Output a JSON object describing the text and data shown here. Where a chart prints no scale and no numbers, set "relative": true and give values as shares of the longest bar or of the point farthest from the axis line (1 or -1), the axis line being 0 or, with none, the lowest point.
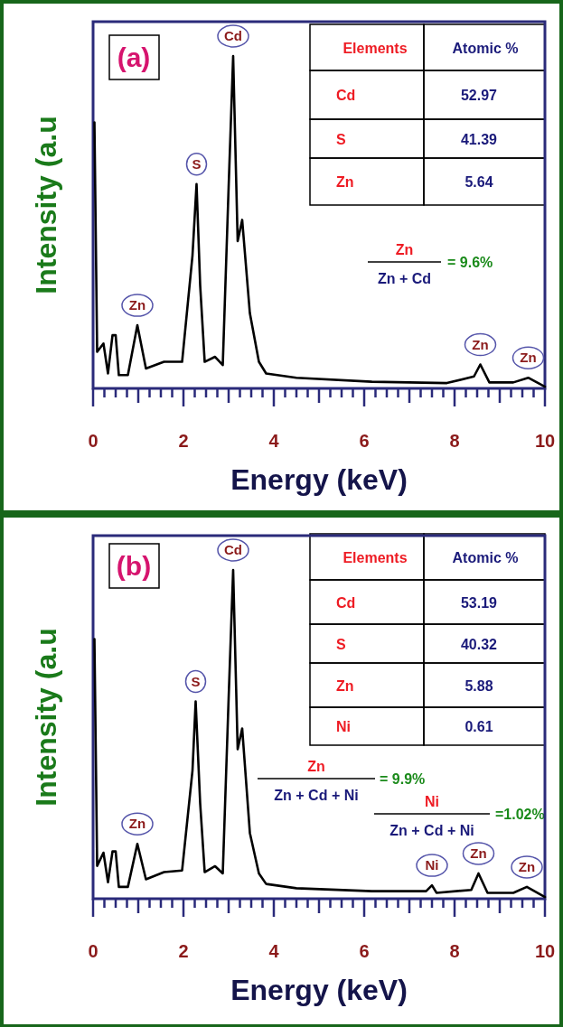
{
  "chart_data": [
    {
      "type": "line",
      "title": "(a)",
      "xlabel": "Energy (keV)",
      "ylabel": "Intensity (a.u",
      "relative": true,
      "tick_labels": "x",
      "color": "#000000",
      "x": [
        0.03,
        0.09,
        0.23,
        0.33,
        0.43,
        0.5,
        0.57,
        0.77,
        0.98,
        1.17,
        1.57,
        1.97,
        2.2,
        2.29,
        2.37,
        2.47,
        2.7,
        2.87,
        3.0,
        3.1,
        3.2,
        3.3,
        3.47,
        3.67,
        3.83,
        4.5,
        6.17,
        7.83,
        8.43,
        8.57,
        8.77,
        9.3,
        9.63,
        10.0
      ],
      "values": [
        0.8,
        0.11,
        0.135,
        0.045,
        0.16,
        0.16,
        0.04,
        0.04,
        0.19,
        0.06,
        0.08,
        0.08,
        0.4,
        0.615,
        0.31,
        0.08,
        0.095,
        0.07,
        0.606,
        1.0,
        0.443,
        0.507,
        0.226,
        0.08,
        0.045,
        0.032,
        0.02,
        0.016,
        0.036,
        0.072,
        0.018,
        0.018,
        0.032,
        0.005
      ],
      "xlim": [
        0,
        10
      ],
      "xticks": [
        0,
        {
          "value": 0.25,
          "label": null
        },
        {
          "value": 0.5,
          "label": null
        },
        {
          "value": 0.75,
          "label": null
        },
        {
          "value": 1,
          "label": null
        },
        {
          "value": 1.25,
          "label": null
        },
        {
          "value": 1.5,
          "label": null
        },
        {
          "value": 1.75,
          "label": null
        },
        2,
        {
          "value": 2.25,
          "label": null
        },
        {
          "value": 2.5,
          "label": null
        },
        {
          "value": 2.75,
          "label": null
        },
        {
          "value": 3,
          "label": null
        },
        {
          "value": 3.25,
          "label": null
        },
        {
          "value": 3.5,
          "label": null
        },
        {
          "value": 3.75,
          "label": null
        },
        4,
        {
          "value": 4.25,
          "label": null
        },
        {
          "value": 4.5,
          "label": null
        },
        {
          "value": 4.75,
          "label": null
        },
        {
          "value": 5,
          "label": null
        },
        {
          "value": 5.25,
          "label": null
        },
        {
          "value": 5.5,
          "label": null
        },
        {
          "value": 5.75,
          "label": null
        },
        6,
        {
          "value": 6.25,
          "label": null
        },
        {
          "value": 6.5,
          "label": null
        },
        {
          "value": 6.75,
          "label": null
        },
        {
          "value": 7,
          "label": null
        },
        {
          "value": 7.25,
          "label": null
        },
        {
          "value": 7.5,
          "label": null
        },
        {
          "value": 7.75,
          "label": null
        },
        8,
        {
          "value": 8.25,
          "label": null
        },
        {
          "value": 8.5,
          "label": null
        },
        {
          "value": 8.75,
          "label": null
        },
        {
          "value": 9,
          "label": null
        },
        {
          "value": 9.25,
          "label": null
        },
        {
          "value": 9.5,
          "label": null
        },
        {
          "value": 9.75,
          "label": null
        },
        10
      ],
      "annotations": [
        {
          "text": "Zn",
          "x": 0.98,
          "y": 0.19
        },
        {
          "text": "S",
          "x": 2.29,
          "y": 0.615
        },
        {
          "text": "Cd",
          "x": 3.1,
          "y": 1.0
        },
        {
          "text": "Zn",
          "x": 8.57,
          "y": 0.072
        },
        {
          "text": "Zn",
          "x": 9.63,
          "y": 0.032
        },
        "Elements",
        "Atomic %",
        "Cd",
        "52.97",
        "S",
        "41.39",
        "Zn",
        "5.64",
        "Zn",
        "Zn + Cd",
        "= 9.6%"
      ]
    },
    {
      "type": "line",
      "title": "(b)",
      "xlabel": "Energy (keV)",
      "ylabel": "Intensity (a.u",
      "relative": true,
      "tick_labels": "x",
      "color": "#000000",
      "x": [
        0.03,
        0.09,
        0.23,
        0.33,
        0.43,
        0.5,
        0.57,
        0.77,
        0.98,
        1.17,
        1.57,
        1.97,
        2.2,
        2.27,
        2.37,
        2.47,
        2.7,
        2.87,
        3.0,
        3.1,
        3.2,
        3.3,
        3.47,
        3.67,
        3.83,
        4.5,
        6.17,
        7.37,
        7.5,
        7.6,
        8.37,
        8.53,
        8.73,
        9.3,
        9.6,
        10.0
      ],
      "values": [
        0.79,
        0.1,
        0.14,
        0.05,
        0.144,
        0.144,
        0.036,
        0.036,
        0.167,
        0.059,
        0.081,
        0.086,
        0.39,
        0.6,
        0.29,
        0.081,
        0.099,
        0.077,
        0.61,
        1.0,
        0.455,
        0.518,
        0.2,
        0.077,
        0.045,
        0.032,
        0.023,
        0.023,
        0.041,
        0.018,
        0.027,
        0.077,
        0.018,
        0.018,
        0.036,
        0.005
      ],
      "xlim": [
        0,
        10
      ],
      "xticks": [
        0,
        {
          "value": 0.25,
          "label": null
        },
        {
          "value": 0.5,
          "label": null
        },
        {
          "value": 0.75,
          "label": null
        },
        {
          "value": 1,
          "label": null
        },
        {
          "value": 1.25,
          "label": null
        },
        {
          "value": 1.5,
          "label": null
        },
        {
          "value": 1.75,
          "label": null
        },
        2,
        {
          "value": 2.25,
          "label": null
        },
        {
          "value": 2.5,
          "label": null
        },
        {
          "value": 2.75,
          "label": null
        },
        {
          "value": 3,
          "label": null
        },
        {
          "value": 3.25,
          "label": null
        },
        {
          "value": 3.5,
          "label": null
        },
        {
          "value": 3.75,
          "label": null
        },
        4,
        {
          "value": 4.25,
          "label": null
        },
        {
          "value": 4.5,
          "label": null
        },
        {
          "value": 4.75,
          "label": null
        },
        {
          "value": 5,
          "label": null
        },
        {
          "value": 5.25,
          "label": null
        },
        {
          "value": 5.5,
          "label": null
        },
        {
          "value": 5.75,
          "label": null
        },
        6,
        {
          "value": 6.25,
          "label": null
        },
        {
          "value": 6.5,
          "label": null
        },
        {
          "value": 6.75,
          "label": null
        },
        {
          "value": 7,
          "label": null
        },
        {
          "value": 7.25,
          "label": null
        },
        {
          "value": 7.5,
          "label": null
        },
        {
          "value": 7.75,
          "label": null
        },
        8,
        {
          "value": 8.25,
          "label": null
        },
        {
          "value": 8.5,
          "label": null
        },
        {
          "value": 8.75,
          "label": null
        },
        {
          "value": 9,
          "label": null
        },
        {
          "value": 9.25,
          "label": null
        },
        {
          "value": 9.5,
          "label": null
        },
        {
          "value": 9.75,
          "label": null
        },
        10
      ],
      "annotations": [
        {
          "text": "Zn",
          "x": 0.98,
          "y": 0.167
        },
        {
          "text": "S",
          "x": 2.27,
          "y": 0.6
        },
        {
          "text": "Cd",
          "x": 3.1,
          "y": 1.0
        },
        {
          "text": "Ni",
          "x": 7.5,
          "y": 0.041
        },
        {
          "text": "Zn",
          "x": 8.53,
          "y": 0.077
        },
        {
          "text": "Zn",
          "x": 9.6,
          "y": 0.036
        },
        "Elements",
        "Atomic %",
        "Cd",
        "53.19",
        "S",
        "40.32",
        "Zn",
        "5.88",
        "Ni",
        "0.61",
        "Zn",
        "Zn + Cd + Ni",
        "= 9.9%",
        "Ni",
        "Zn + Cd + Ni",
        "=1.02%"
      ]
    }
  ]
}
